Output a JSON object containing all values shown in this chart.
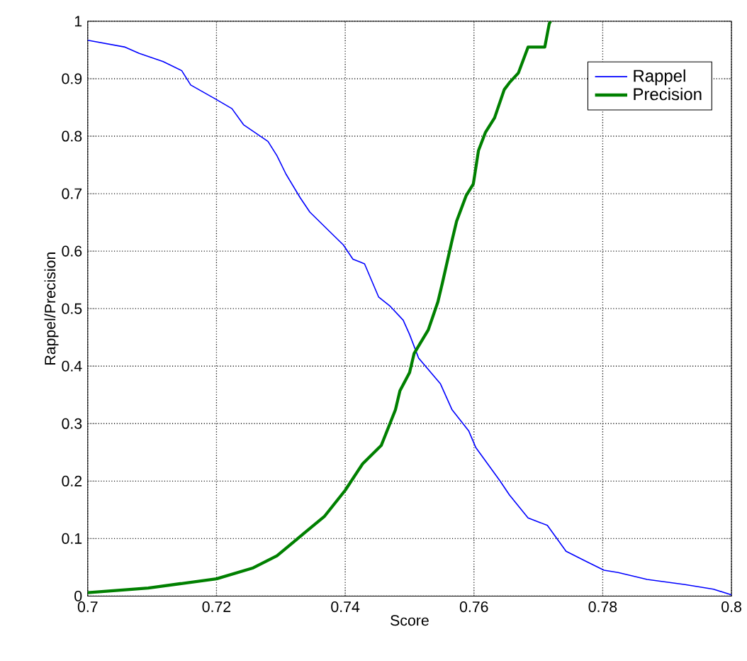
{
  "chart_data": {
    "type": "line",
    "xlabel": "Score",
    "ylabel": "Rappel/Precision",
    "xlim": [
      0.7,
      0.8
    ],
    "ylim": [
      0,
      1
    ],
    "xticks": [
      0.7,
      0.72,
      0.74,
      0.76,
      0.78,
      0.8
    ],
    "yticks": [
      0,
      0.1,
      0.2,
      0.3,
      0.4,
      0.5,
      0.6,
      0.7,
      0.8,
      0.9,
      1
    ],
    "grid": true,
    "legend": "top right",
    "marker": "none",
    "line_style": "solid",
    "series": [
      {
        "name": "Rappel",
        "color": "#0000ff",
        "x": [
          0.7,
          0.7058,
          0.708,
          0.7117,
          0.7146,
          0.716,
          0.7198,
          0.7224,
          0.7242,
          0.728,
          0.7294,
          0.7308,
          0.733,
          0.7345,
          0.7375,
          0.7397,
          0.7412,
          0.743,
          0.7452,
          0.747,
          0.749,
          0.75,
          0.7514,
          0.7548,
          0.7566,
          0.7592,
          0.7603,
          0.764,
          0.7655,
          0.7684,
          0.7714,
          0.7743,
          0.7773,
          0.7802,
          0.7824,
          0.7869,
          0.7928,
          0.7972,
          0.8
        ],
        "values": [
          0.967,
          0.955,
          0.944,
          0.93,
          0.914,
          0.889,
          0.865,
          0.848,
          0.82,
          0.791,
          0.766,
          0.734,
          0.693,
          0.668,
          0.635,
          0.611,
          0.586,
          0.578,
          0.52,
          0.504,
          0.48,
          0.455,
          0.414,
          0.369,
          0.324,
          0.287,
          0.258,
          0.201,
          0.176,
          0.136,
          0.123,
          0.078,
          0.061,
          0.045,
          0.041,
          0.029,
          0.02,
          0.012,
          0.002
        ]
      },
      {
        "name": "Precision",
        "color": "#008000",
        "x": [
          0.7,
          0.7094,
          0.72,
          0.7257,
          0.7294,
          0.7338,
          0.7368,
          0.74,
          0.7427,
          0.7456,
          0.7478,
          0.7485,
          0.75,
          0.7507,
          0.7529,
          0.7544,
          0.7551,
          0.7566,
          0.7573,
          0.7588,
          0.7599,
          0.7607,
          0.7618,
          0.7632,
          0.7647,
          0.7655,
          0.7669,
          0.7684,
          0.771,
          0.7717,
          0.7719
        ],
        "values": [
          0.006,
          0.014,
          0.03,
          0.049,
          0.07,
          0.111,
          0.139,
          0.184,
          0.23,
          0.262,
          0.324,
          0.357,
          0.389,
          0.422,
          0.463,
          0.512,
          0.545,
          0.619,
          0.652,
          0.697,
          0.717,
          0.775,
          0.807,
          0.832,
          0.881,
          0.893,
          0.91,
          0.955,
          0.955,
          0.996,
          1.0
        ]
      }
    ]
  }
}
